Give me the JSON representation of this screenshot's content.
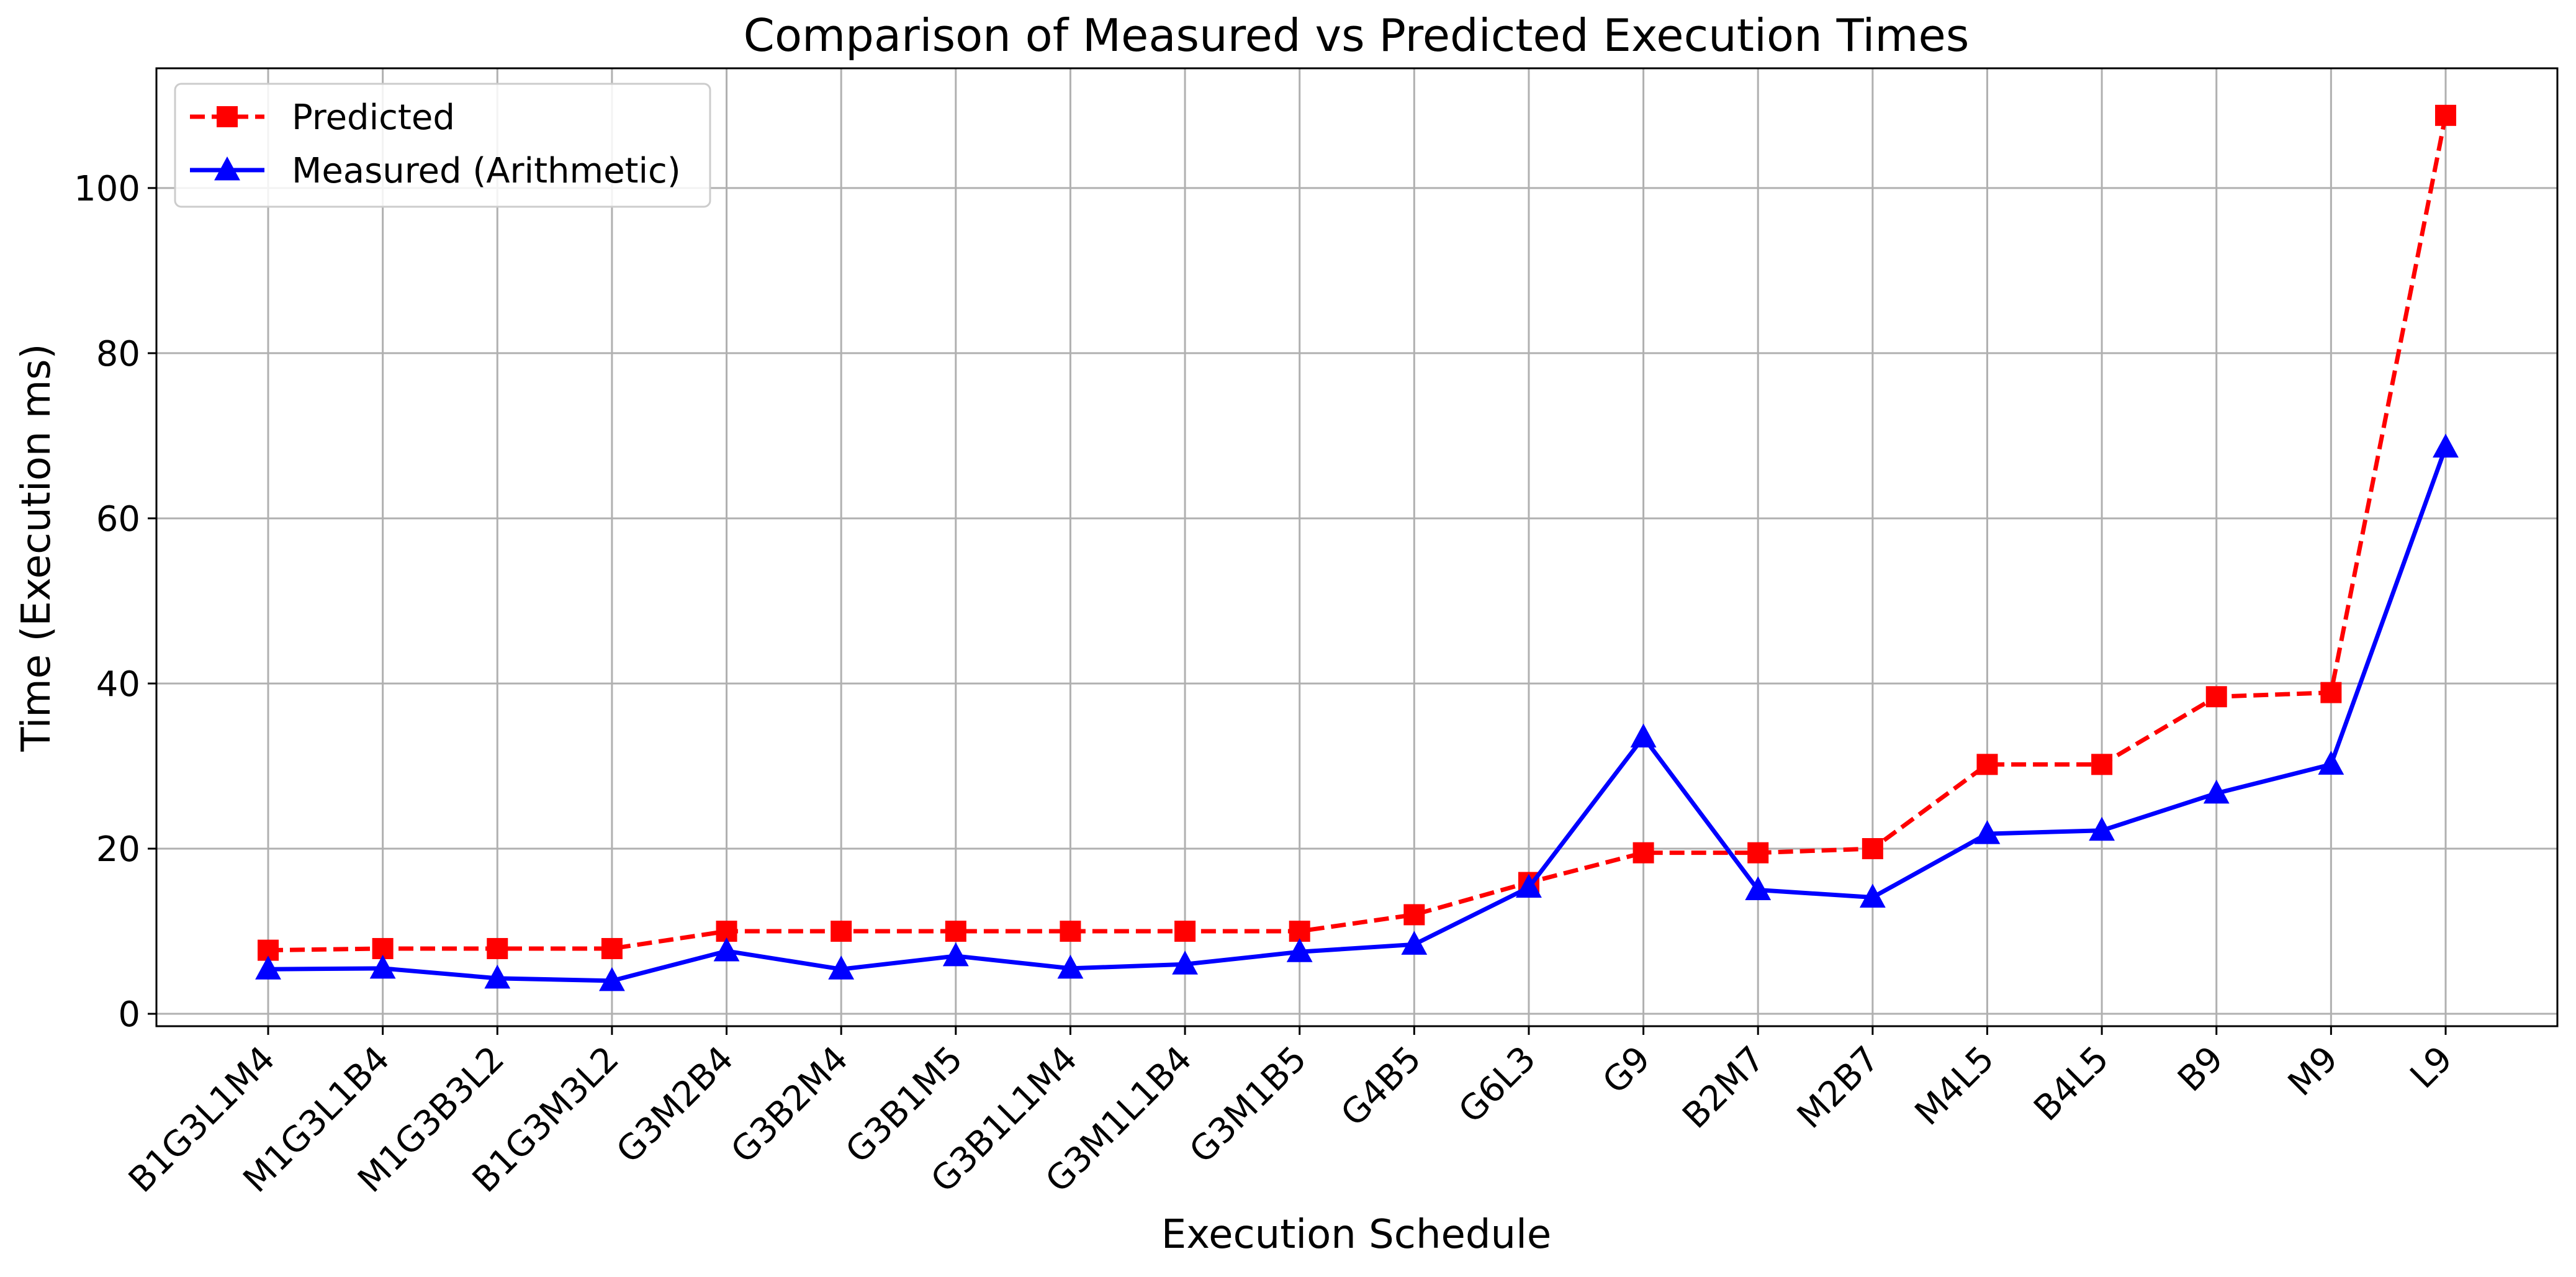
{
  "chart_data": {
    "type": "line",
    "title": "Comparison of Measured vs Predicted Execution Times",
    "xlabel": "Execution Schedule",
    "ylabel": "Time (Execution ms)",
    "categories": [
      "B1G3L1M4",
      "M1G3L1B4",
      "M1G3B3L2",
      "B1G3M3L2",
      "G3M2B4",
      "G3B2M4",
      "G3B1M5",
      "G3B1L1M4",
      "G3M1L1B4",
      "G3M1B5",
      "G4B5",
      "G6L3",
      "G9",
      "B2M7",
      "M2B7",
      "M4L5",
      "B4L5",
      "B9",
      "M9",
      "L9"
    ],
    "ylim": [
      -1.5,
      114.5
    ],
    "yticks": [
      0,
      20,
      40,
      60,
      80,
      100
    ],
    "grid": true,
    "legend_position": "top-left",
    "series": [
      {
        "name": "Predicted",
        "color": "#ff0000",
        "line_style": "dashed",
        "marker": "square",
        "values": [
          7.7,
          7.9,
          7.9,
          7.9,
          10.0,
          10.0,
          10.0,
          10.0,
          10.0,
          10.0,
          12.0,
          15.9,
          19.5,
          19.5,
          20.0,
          30.2,
          30.2,
          38.4,
          38.9,
          108.8
        ]
      },
      {
        "name": "Measured (Arithmetic)",
        "color": "#0000ff",
        "line_style": "solid",
        "marker": "triangle",
        "values": [
          5.4,
          5.5,
          4.3,
          4.0,
          7.6,
          5.4,
          7.0,
          5.5,
          6.0,
          7.5,
          8.4,
          15.3,
          33.5,
          15.0,
          14.1,
          21.8,
          22.2,
          26.7,
          30.2,
          68.6
        ]
      }
    ]
  }
}
